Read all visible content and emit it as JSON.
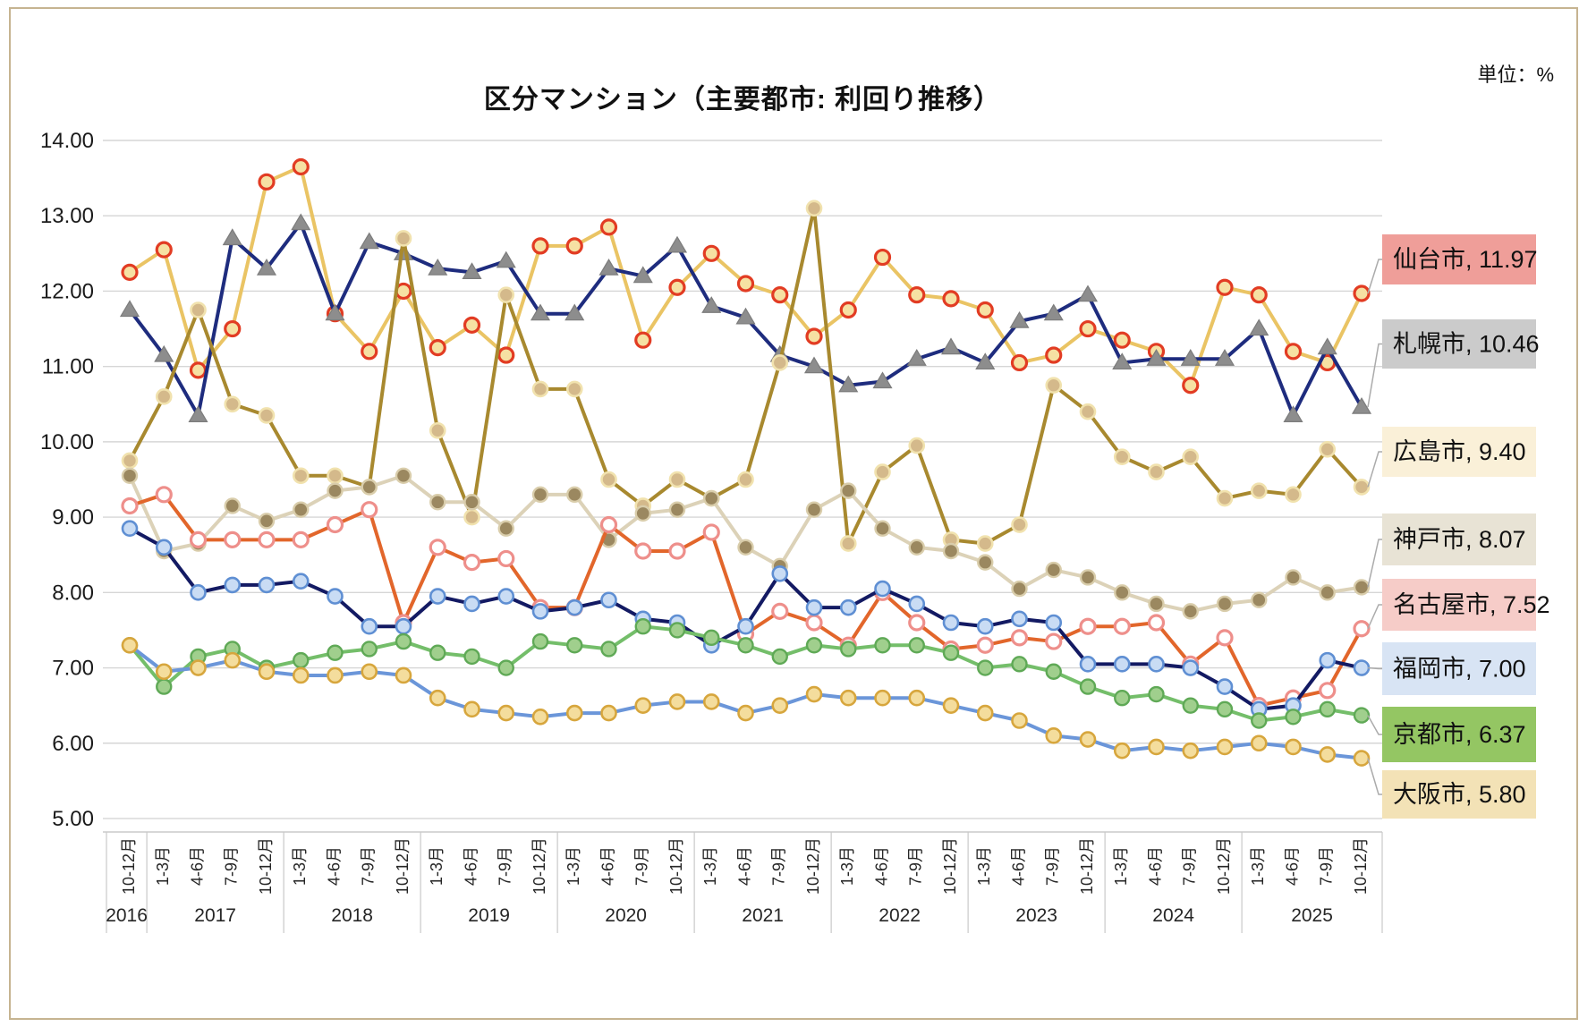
{
  "title": "区分マンション（主要都市: 利回り推移）",
  "unit": "単位：%",
  "chart_data": {
    "type": "line",
    "title": "区分マンション（主要都市: 利回り推移）",
    "unit_label": "単位：%",
    "ylim": [
      5,
      14
    ],
    "ytick_step": 1,
    "ytick_labels": [
      "14.00",
      "13.00",
      "12.00",
      "11.00",
      "10.00",
      "9.00",
      "8.00",
      "7.00",
      "6.00",
      "5.00"
    ],
    "grid": true,
    "legend_position": "right-end-labels",
    "x_quarter_labels": [
      "10-12月",
      "1-3月",
      "4-6月",
      "7-9月",
      "10-12月",
      "1-3月",
      "4-6月",
      "7-9月",
      "10-12月",
      "1-3月",
      "4-6月",
      "7-9月",
      "10-12月",
      "1-3月",
      "4-6月",
      "7-9月",
      "10-12月",
      "1-3月",
      "4-6月",
      "7-9月",
      "10-12月",
      "1-3月",
      "4-6月",
      "7-9月",
      "10-12月",
      "1-3月",
      "4-6月",
      "7-9月",
      "10-12月",
      "1-3月",
      "4-6月",
      "7-9月",
      "10-12月",
      "1-3月",
      "4-6月",
      "7-9月",
      "10-12月"
    ],
    "x_year_groups": [
      {
        "year": "2016",
        "count": 1
      },
      {
        "year": "2017",
        "count": 4
      },
      {
        "year": "2018",
        "count": 4
      },
      {
        "year": "2019",
        "count": 4
      },
      {
        "year": "2020",
        "count": 4
      },
      {
        "year": "2021",
        "count": 4
      },
      {
        "year": "2022",
        "count": 4
      },
      {
        "year": "2023",
        "count": 4
      },
      {
        "year": "2024",
        "count": 4
      },
      {
        "year": "2025",
        "count": 4
      }
    ],
    "series": [
      {
        "id": "sendai",
        "name": "仙台市",
        "end_label": "仙台市, 11.97",
        "end_value": 11.97,
        "line_color": "#EAC464",
        "marker": "circle",
        "marker_fill": "#F6E1A3",
        "marker_stroke": "#E23C23",
        "marker_stroke_w": 3.2,
        "label_bg": "#EF9E99",
        "values": [
          12.25,
          12.55,
          10.95,
          11.5,
          13.45,
          13.65,
          11.7,
          11.2,
          12.0,
          11.25,
          11.55,
          11.15,
          12.6,
          12.6,
          12.85,
          11.35,
          12.05,
          12.5,
          12.1,
          11.95,
          11.4,
          11.75,
          12.45,
          11.95,
          11.9,
          11.75,
          11.05,
          11.15,
          11.5,
          11.35,
          11.2,
          10.75,
          12.05,
          11.95,
          11.2,
          11.05,
          11.97
        ]
      },
      {
        "id": "sapporo",
        "name": "札幌市",
        "end_label": "札幌市, 10.46",
        "end_value": 10.46,
        "line_color": "#1E2C7E",
        "marker": "triangle",
        "marker_fill": "#8D8D8D",
        "marker_stroke": "#7C7C7C",
        "marker_stroke_w": 1.2,
        "label_bg": "#CBCBCB",
        "values": [
          11.75,
          11.15,
          10.35,
          12.7,
          12.3,
          12.9,
          11.7,
          12.65,
          12.5,
          12.3,
          12.25,
          12.4,
          11.7,
          11.7,
          12.3,
          12.2,
          12.6,
          11.8,
          11.65,
          11.15,
          11.0,
          10.75,
          10.8,
          11.1,
          11.25,
          11.05,
          11.6,
          11.7,
          11.95,
          11.05,
          11.1,
          11.1,
          11.1,
          11.5,
          10.35,
          11.25,
          10.46
        ]
      },
      {
        "id": "hiroshima",
        "name": "広島市",
        "end_label": "広島市, 9.40",
        "end_value": 9.4,
        "line_color": "#A8892F",
        "marker": "circle",
        "marker_fill": "#D4B98B",
        "marker_stroke": "#F1E2AE",
        "marker_stroke_w": 2.6,
        "label_bg": "#FAF0D8",
        "values": [
          9.75,
          10.6,
          11.75,
          10.5,
          10.35,
          9.55,
          9.55,
          9.4,
          12.7,
          10.15,
          9.0,
          11.95,
          10.7,
          10.7,
          9.5,
          9.15,
          9.5,
          9.25,
          9.5,
          11.05,
          13.1,
          8.65,
          9.6,
          9.95,
          8.7,
          8.65,
          8.9,
          10.75,
          10.4,
          9.8,
          9.6,
          9.8,
          9.25,
          9.35,
          9.3,
          9.9,
          9.4
        ]
      },
      {
        "id": "kobe",
        "name": "神戸市",
        "end_label": "神戸市, 8.07",
        "end_value": 8.07,
        "line_color": "#DCD2B8",
        "marker": "circle",
        "marker_fill": "#9B8860",
        "marker_stroke": "#D9CDAB",
        "marker_stroke_w": 2.4,
        "label_bg": "#E8E3D5",
        "values": [
          9.55,
          8.55,
          8.65,
          9.15,
          8.95,
          9.1,
          9.35,
          9.4,
          9.55,
          9.2,
          9.2,
          8.85,
          9.3,
          9.3,
          8.7,
          9.05,
          9.1,
          9.25,
          8.6,
          8.35,
          9.1,
          9.35,
          8.85,
          8.6,
          8.55,
          8.4,
          8.05,
          8.3,
          8.2,
          8.0,
          7.85,
          7.75,
          7.85,
          7.9,
          8.2,
          8.0,
          8.07
        ]
      },
      {
        "id": "nagoya",
        "name": "名古屋市",
        "end_label": "名古屋市, 7.52",
        "end_value": 7.52,
        "line_color": "#E2662B",
        "marker": "circle",
        "marker_fill": "#FFFFFF",
        "marker_stroke": "#EE8F8B",
        "marker_stroke_w": 3.2,
        "label_bg": "#F6CCC8",
        "values": [
          9.15,
          9.3,
          8.7,
          8.7,
          8.7,
          8.7,
          8.9,
          9.1,
          7.6,
          8.6,
          8.4,
          8.45,
          7.8,
          7.8,
          8.9,
          8.55,
          8.55,
          8.8,
          7.45,
          7.75,
          7.6,
          7.3,
          8.0,
          7.6,
          7.25,
          7.3,
          7.4,
          7.35,
          7.55,
          7.55,
          7.6,
          7.05,
          7.4,
          6.5,
          6.6,
          6.7,
          7.52
        ]
      },
      {
        "id": "fukuoka",
        "name": "福岡市",
        "end_label": "福岡市, 7.00",
        "end_value": 7.0,
        "line_color": "#131A63",
        "marker": "circle",
        "marker_fill": "#C9DCF4",
        "marker_stroke": "#5F8FD3",
        "marker_stroke_w": 2.6,
        "label_bg": "#D8E4F4",
        "values": [
          8.85,
          8.6,
          8.0,
          8.1,
          8.1,
          8.15,
          7.95,
          7.55,
          7.55,
          7.95,
          7.85,
          7.95,
          7.75,
          7.8,
          7.9,
          7.65,
          7.6,
          7.3,
          7.55,
          8.25,
          7.8,
          7.8,
          8.05,
          7.85,
          7.6,
          7.55,
          7.65,
          7.6,
          7.05,
          7.05,
          7.05,
          7.0,
          6.75,
          6.45,
          6.5,
          7.1,
          7.0
        ]
      },
      {
        "id": "kyoto",
        "name": "京都市",
        "end_label": "京都市, 6.37",
        "end_value": 6.37,
        "line_color": "#74BE6A",
        "marker": "circle",
        "marker_fill": "#A0CF8D",
        "marker_stroke": "#5FA956",
        "marker_stroke_w": 2.4,
        "label_bg": "#94C663",
        "values": [
          7.3,
          6.75,
          7.15,
          7.25,
          7.0,
          7.1,
          7.2,
          7.25,
          7.35,
          7.2,
          7.15,
          7.0,
          7.35,
          7.3,
          7.25,
          7.55,
          7.5,
          7.4,
          7.3,
          7.15,
          7.3,
          7.25,
          7.3,
          7.3,
          7.2,
          7.0,
          7.05,
          6.95,
          6.75,
          6.6,
          6.65,
          6.5,
          6.45,
          6.3,
          6.35,
          6.45,
          6.37
        ]
      },
      {
        "id": "osaka",
        "name": "大阪市",
        "end_label": "大阪市, 5.80",
        "end_value": 5.8,
        "line_color": "#6B96D9",
        "marker": "circle",
        "marker_fill": "#F4DD9D",
        "marker_stroke": "#D7A63D",
        "marker_stroke_w": 2.6,
        "label_bg": "#F3E2B6",
        "values": [
          7.3,
          6.95,
          7.0,
          7.1,
          6.95,
          6.9,
          6.9,
          6.95,
          6.9,
          6.6,
          6.45,
          6.4,
          6.35,
          6.4,
          6.4,
          6.5,
          6.55,
          6.55,
          6.4,
          6.5,
          6.65,
          6.6,
          6.6,
          6.6,
          6.5,
          6.4,
          6.3,
          6.1,
          6.05,
          5.9,
          5.95,
          5.9,
          5.95,
          6.0,
          5.95,
          5.85,
          5.8
        ]
      }
    ]
  }
}
